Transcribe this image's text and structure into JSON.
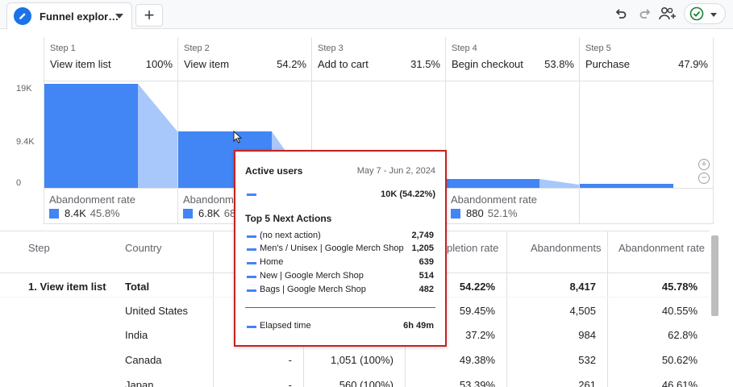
{
  "tab": {
    "title": "Funnel explor…"
  },
  "icons": {
    "tab": "edit-pencil-icon",
    "add": "plus-icon",
    "undo": "undo-icon",
    "redo": "redo-icon",
    "share": "add-people-icon",
    "status": "check-circle-icon"
  },
  "add_label": "+",
  "colors": {
    "bar": "#4285f4",
    "bar_light": "#a8c7fa",
    "accent_border": "#c5221f",
    "status_green": "#188038"
  },
  "chart": {
    "y_ticks": [
      "19K",
      "9.4K",
      "0"
    ],
    "steps": [
      {
        "num": "Step 1",
        "name": "View item list",
        "pct": "100%"
      },
      {
        "num": "Step 2",
        "name": "View item",
        "pct": "54.2%"
      },
      {
        "num": "Step 3",
        "name": "Add to cart",
        "pct": "31.5%"
      },
      {
        "num": "Step 4",
        "name": "Begin checkout",
        "pct": "53.8%"
      },
      {
        "num": "Step 5",
        "name": "Purchase",
        "pct": "47.9%"
      }
    ],
    "abandonment": [
      {
        "label": "Abandonment rate",
        "value": "8.4K",
        "pct": "45.8%"
      },
      {
        "label": "Abandonme",
        "value": "6.8K",
        "pct": "68."
      },
      {
        "label": "Abandonment rate",
        "value": "880",
        "pct": "52.1%"
      }
    ],
    "zoom_in": "+",
    "zoom_out": "−"
  },
  "table": {
    "headers": [
      "Step",
      "Country",
      "pletion rate",
      "Abandonments",
      "Abandonment rate"
    ],
    "rows": [
      {
        "step": "1. View item list",
        "country": "Total",
        "c3": "",
        "c4": "",
        "completion": "54.22%",
        "abandonments": "8,417",
        "rate": "45.78%",
        "bold": true
      },
      {
        "step": "",
        "country": "United States",
        "c3": "",
        "c4": "",
        "completion": "59.45%",
        "abandonments": "4,505",
        "rate": "40.55%"
      },
      {
        "step": "",
        "country": "India",
        "c3": "",
        "c4": "",
        "completion": "37.2%",
        "abandonments": "984",
        "rate": "62.8%"
      },
      {
        "step": "",
        "country": "Canada",
        "c3": "-",
        "c4": "1,051 (100%)",
        "completion": "49.38%",
        "abandonments": "532",
        "rate": "50.62%"
      },
      {
        "step": "",
        "country": "Japan",
        "c3": "-",
        "c4": "560 (100%)",
        "completion": "53.39%",
        "abandonments": "261",
        "rate": "46.61%"
      }
    ]
  },
  "tooltip": {
    "title": "Active users",
    "date": "May 7 - Jun 2, 2024",
    "main_value": "10K (54.22%)",
    "subtitle": "Top 5 Next Actions",
    "actions": [
      {
        "label": "(no next action)",
        "value": "2,749"
      },
      {
        "label": "Men's / Unisex | Google Merch Shop",
        "value": "1,205"
      },
      {
        "label": "Home",
        "value": "639"
      },
      {
        "label": "New | Google Merch Shop",
        "value": "514"
      },
      {
        "label": "Bags | Google Merch Shop",
        "value": "482"
      }
    ],
    "elapsed_label": "Elapsed time",
    "elapsed_value": "6h 49m"
  }
}
